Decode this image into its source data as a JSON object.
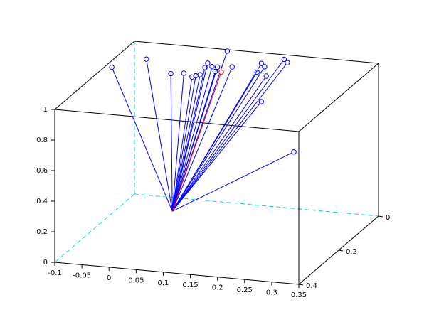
{
  "chart_data": {
    "type": "stem3d",
    "origin": {
      "x": 0.08,
      "y": 0.3,
      "z": 0.28
    },
    "series": [
      {
        "color": "#0000ff",
        "x": [
          -0.105,
          -0.078,
          -0.033,
          -0.009,
          0.006,
          0.013,
          0.021,
          0.03,
          0.035,
          0.043,
          0.049,
          0.053,
          0.071,
          0.08,
          0.126,
          0.134,
          0.14,
          0.143,
          0.134,
          0.176,
          0.182,
          0.194
        ],
        "y": [
          0.1,
          0,
          0,
          0,
          0,
          0,
          0,
          0,
          0,
          0,
          0,
          0,
          0,
          0,
          0,
          0,
          0,
          0,
          0,
          0,
          0,
          0
        ],
        "z": [
          0.94,
          0.89,
          0.81,
          0.82,
          0.8,
          0.81,
          0.82,
          0.87,
          0.9,
          0.88,
          0.85,
          0.88,
          0.99,
          0.89,
          0.87,
          0.93,
          0.91,
          0.85,
          0.68,
          0.97,
          0.95,
          0.37
        ]
      },
      {
        "color": "#ff0000",
        "x": [
          0.06
        ],
        "y": [
          0
        ],
        "z": [
          0.85
        ]
      }
    ],
    "xlim": [
      -0.1,
      0.35
    ],
    "xticks": [
      -0.1,
      -0.05,
      0,
      0.05,
      0.1,
      0.15,
      0.2,
      0.25,
      0.3,
      0.35
    ],
    "ylim": [
      0,
      0.4
    ],
    "yticks": [
      0,
      0.2,
      0.4
    ],
    "zlim": [
      0,
      1
    ],
    "zticks": [
      0,
      0.2,
      0.4,
      0.6,
      0.8,
      1
    ]
  }
}
